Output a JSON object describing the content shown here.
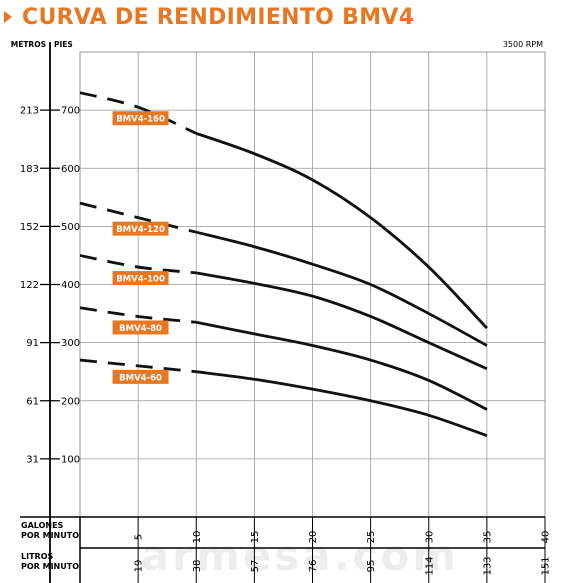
{
  "page": {
    "title": "CURVA DE RENDIMIENTO BMV4",
    "watermark": "armesa.com",
    "accent": "#e87722"
  },
  "chart_data": {
    "type": "line",
    "title": "CURVA DE RENDIMIENTO BMV4",
    "speed_label": "3500 RPM",
    "y_unit_left": "METROS",
    "y_unit_right": "PIES",
    "x_label_gpm": "GALONES POR MINUTO",
    "x_label_lpm": "LITROS POR MINUTO",
    "ylim": [
      0,
      800
    ],
    "xlim": [
      0,
      40
    ],
    "y_ticks": [
      {
        "ft": 100,
        "m": "31"
      },
      {
        "ft": 200,
        "m": "61"
      },
      {
        "ft": 300,
        "m": "91"
      },
      {
        "ft": 400,
        "m": "122"
      },
      {
        "ft": 500,
        "m": "152"
      },
      {
        "ft": 600,
        "m": "183"
      },
      {
        "ft": 700,
        "m": "213"
      }
    ],
    "x_ticks": [
      {
        "gpm": 5,
        "lpm": "19"
      },
      {
        "gpm": 10,
        "lpm": "38"
      },
      {
        "gpm": 15,
        "lpm": "57"
      },
      {
        "gpm": 20,
        "lpm": "76"
      },
      {
        "gpm": 25,
        "lpm": "95"
      },
      {
        "gpm": 30,
        "lpm": "114"
      },
      {
        "gpm": 35,
        "lpm": "133"
      },
      {
        "gpm": 40,
        "lpm": "151"
      }
    ],
    "grid": true,
    "series": [
      {
        "name": "BMV4-160",
        "dashed": [
          [
            0,
            730
          ],
          [
            5,
            705
          ],
          [
            10,
            660
          ]
        ],
        "solid": [
          [
            10,
            660
          ],
          [
            15,
            625
          ],
          [
            20,
            580
          ],
          [
            25,
            515
          ],
          [
            30,
            430
          ],
          [
            35,
            325
          ]
        ]
      },
      {
        "name": "BMV4-120",
        "dashed": [
          [
            0,
            540
          ],
          [
            5,
            515
          ],
          [
            10,
            490
          ]
        ],
        "solid": [
          [
            10,
            490
          ],
          [
            15,
            465
          ],
          [
            20,
            435
          ],
          [
            25,
            400
          ],
          [
            30,
            350
          ],
          [
            35,
            295
          ]
        ]
      },
      {
        "name": "BMV4-100",
        "dashed": [
          [
            0,
            450
          ],
          [
            5,
            430
          ],
          [
            10,
            420
          ]
        ],
        "solid": [
          [
            10,
            420
          ],
          [
            15,
            402
          ],
          [
            20,
            380
          ],
          [
            25,
            345
          ],
          [
            30,
            300
          ],
          [
            35,
            255
          ]
        ]
      },
      {
        "name": "BMV4-80",
        "dashed": [
          [
            0,
            360
          ],
          [
            5,
            345
          ],
          [
            10,
            335
          ]
        ],
        "solid": [
          [
            10,
            335
          ],
          [
            15,
            315
          ],
          [
            20,
            295
          ],
          [
            25,
            270
          ],
          [
            30,
            235
          ],
          [
            35,
            185
          ]
        ]
      },
      {
        "name": "BMV4-60",
        "dashed": [
          [
            0,
            270
          ],
          [
            5,
            260
          ],
          [
            10,
            250
          ]
        ],
        "solid": [
          [
            10,
            250
          ],
          [
            15,
            237
          ],
          [
            20,
            220
          ],
          [
            25,
            200
          ],
          [
            30,
            175
          ],
          [
            35,
            140
          ]
        ]
      }
    ]
  }
}
